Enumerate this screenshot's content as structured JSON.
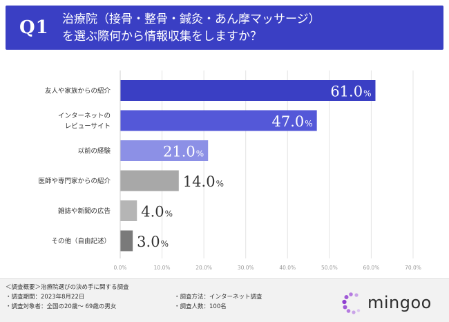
{
  "header": {
    "q_label": "Q1",
    "title_line1": "治療院（接骨・整骨・鍼灸・あん摩マッサージ）",
    "title_line2": "を選ぶ際何から情報収集をしますか？",
    "bg_color": "#3a3fc4"
  },
  "chart_data": {
    "type": "bar",
    "orientation": "horizontal",
    "title": "",
    "xlabel": "",
    "ylabel": "",
    "xlim": [
      0,
      70
    ],
    "grid": true,
    "value_suffix": "%",
    "categories": [
      [
        "友人や家族からの紹介"
      ],
      [
        "インターネットの",
        "レビューサイト"
      ],
      [
        "以前の経験"
      ],
      [
        "医師や専門家からの紹介"
      ],
      [
        "雑誌や新聞の広告"
      ],
      [
        "その他（自由記述）"
      ]
    ],
    "values": [
      61.0,
      47.0,
      21.0,
      14.0,
      4.0,
      3.0
    ],
    "value_labels": [
      "61.0",
      "47.0",
      "21.0",
      "14.0",
      "4.0",
      "3.0"
    ],
    "x_ticks": [
      "0.0%",
      "10.0%",
      "20.0%",
      "30.0%",
      "40.0%",
      "50.0%",
      "60.0%",
      "70.0%"
    ],
    "colors": [
      "#3a3fc4",
      "#5458d8",
      "#8c90e6",
      "#a8a8a8",
      "#b5b5b5",
      "#7a7a7a"
    ]
  },
  "footer": {
    "overview": "＜調査概要＞治療院選びの決め手に関する調査",
    "period": "・調査期間：2023年8月22日",
    "method": "・調査方法：インターネット調査",
    "target": "・調査対象者：全国の20歳〜 69歳の男女",
    "count": "・調査人数：100名",
    "brand": "mingoo"
  }
}
